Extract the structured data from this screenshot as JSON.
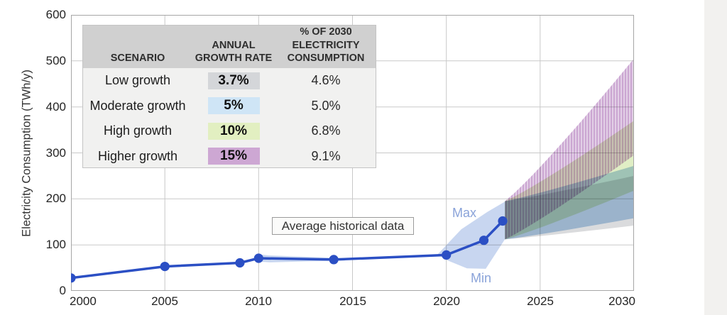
{
  "colors": {
    "grid": "#c9c9c9",
    "plot_border": "#a6a6a6",
    "side_strip": "#f2f1ef",
    "table_header_bg": "#d0d0d0",
    "table_body_bg": "#f1f1f0",
    "axis_text": "#242424",
    "range_label_text": "#8aa3d9",
    "line": "#2b4fc4"
  },
  "y_axis": {
    "title": "Electricity Consumption (TWh/y)"
  },
  "annotation": {
    "label": "Average historical data"
  },
  "range_labels": {
    "max": "Max",
    "min": "Min"
  },
  "table": {
    "headers": {
      "scenario": "SCENARIO",
      "growth": "ANNUAL\nGROWTH RATE",
      "share": "% OF 2030\nELECTRICITY\nCONSUMPTION"
    },
    "rows": [
      {
        "scenario": "Low growth",
        "rate": "3.7%",
        "rate_color": "#d4d6d9",
        "share": "4.6%"
      },
      {
        "scenario": "Moderate growth",
        "rate": "5%",
        "rate_color": "#cfe5f6",
        "share": "5.0%"
      },
      {
        "scenario": "High growth",
        "rate": "10%",
        "rate_color": "#e2efc1",
        "share": "6.8%"
      },
      {
        "scenario": "Higher growth",
        "rate": "15%",
        "rate_color": "#cda7d3",
        "share": "9.1%"
      }
    ]
  },
  "chart_data": {
    "type": "line",
    "title": "",
    "xlabel": "",
    "ylabel": "Electricity Consumption (TWh/y)",
    "xlim": [
      2000,
      2030
    ],
    "ylim": [
      0,
      600
    ],
    "x_ticks": [
      2000,
      2005,
      2010,
      2015,
      2020,
      2025,
      2030
    ],
    "y_ticks": [
      0,
      100,
      200,
      300,
      400,
      500,
      600
    ],
    "grid": true,
    "series": [
      {
        "name": "Average historical data",
        "color": "#2b4fc4",
        "points": [
          [
            2000,
            28
          ],
          [
            2005,
            53
          ],
          [
            2009,
            61
          ],
          [
            2010,
            71
          ],
          [
            2014,
            68
          ],
          [
            2020,
            78
          ],
          [
            2022,
            110
          ],
          [
            2023,
            152
          ]
        ]
      }
    ],
    "range_bands": [
      {
        "name": "historical-minmax-band-2010-2014",
        "color": "#c8d6f0",
        "points": [
          [
            2009.85,
            80
          ],
          [
            2010.6,
            77
          ],
          [
            2014.6,
            71
          ],
          [
            2014.6,
            66
          ],
          [
            2010.6,
            62
          ],
          [
            2009.85,
            64
          ]
        ]
      },
      {
        "name": "historical-minmax-band-2020-2023",
        "color": "#c8d6f0",
        "points": [
          [
            2019.55,
            80
          ],
          [
            2020.8,
            134
          ],
          [
            2022.2,
            172
          ],
          [
            2023.12,
            194
          ],
          [
            2023.12,
            112
          ],
          [
            2022.1,
            48
          ],
          [
            2021.1,
            49
          ],
          [
            2019.9,
            69
          ]
        ]
      }
    ],
    "projection_bands": [
      {
        "name": "Low growth 3.7%",
        "color": "#dadbdd",
        "start_year": 2023.12,
        "end_year": 2030,
        "start_min": 112,
        "start_max": 195,
        "end_min": 142,
        "end_max": 250
      },
      {
        "name": "Moderate growth 5%",
        "color": "#b5d1ea",
        "start_year": 2023.12,
        "end_year": 2030,
        "start_min": 112,
        "start_max": 195,
        "end_min": 158,
        "end_max": 272
      },
      {
        "name": "High growth 10%",
        "color": "#e0eec5",
        "start_year": 2023.12,
        "end_year": 2030,
        "start_min": 112,
        "start_max": 195,
        "end_min": 218,
        "end_max": 370
      },
      {
        "name": "Higher growth 15%",
        "stripes": [
          "#cba6d2",
          "#e2cfe6"
        ],
        "start_year": 2023.12,
        "end_year": 2030,
        "start_min": 112,
        "start_max": 195,
        "end_min": 295,
        "end_max": 505
      }
    ]
  }
}
